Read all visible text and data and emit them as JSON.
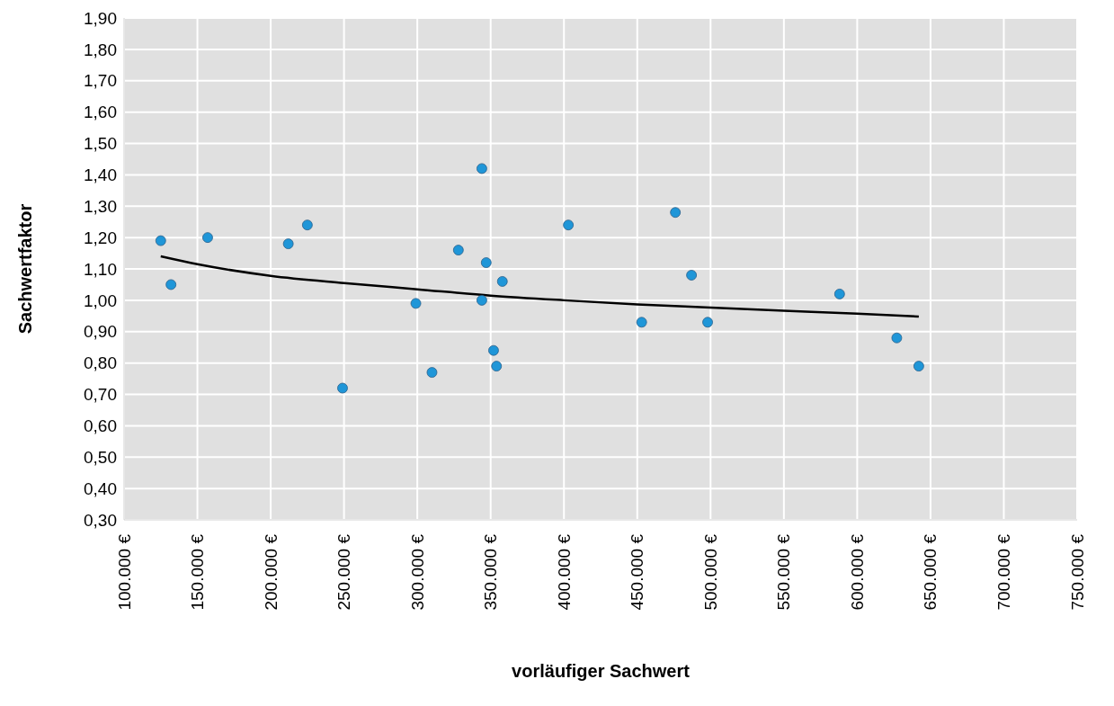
{
  "chart_data": {
    "type": "scatter",
    "xlabel": "vorläufiger Sachwert",
    "ylabel": "Sachwertfaktor",
    "grid": true,
    "marker": "circle",
    "xlim": [
      100000,
      750000
    ],
    "xticks": [
      {
        "value": 100000,
        "label": "100.000 €"
      },
      {
        "value": 150000,
        "label": "150.000 €"
      },
      {
        "value": 200000,
        "label": "200.000 €"
      },
      {
        "value": 250000,
        "label": "250.000 €"
      },
      {
        "value": 300000,
        "label": "300.000 €"
      },
      {
        "value": 350000,
        "label": "350.000 €"
      },
      {
        "value": 400000,
        "label": "400.000 €"
      },
      {
        "value": 450000,
        "label": "450.000 €"
      },
      {
        "value": 500000,
        "label": "500.000 €"
      },
      {
        "value": 550000,
        "label": "550.000 €"
      },
      {
        "value": 600000,
        "label": "600.000 €"
      },
      {
        "value": 650000,
        "label": "650.000 €"
      },
      {
        "value": 700000,
        "label": "700.000 €"
      },
      {
        "value": 750000,
        "label": "750.000 €"
      }
    ],
    "ylim": [
      0.3,
      1.9
    ],
    "yticks": [
      {
        "value": 0.3,
        "label": "0,30"
      },
      {
        "value": 0.4,
        "label": "0,40"
      },
      {
        "value": 0.5,
        "label": "0,50"
      },
      {
        "value": 0.6,
        "label": "0,60"
      },
      {
        "value": 0.7,
        "label": "0,70"
      },
      {
        "value": 0.8,
        "label": "0,80"
      },
      {
        "value": 0.9,
        "label": "0,90"
      },
      {
        "value": 1.0,
        "label": "1,00"
      },
      {
        "value": 1.1,
        "label": "1,10"
      },
      {
        "value": 1.2,
        "label": "1,20"
      },
      {
        "value": 1.3,
        "label": "1,30"
      },
      {
        "value": 1.4,
        "label": "1,40"
      },
      {
        "value": 1.5,
        "label": "1,50"
      },
      {
        "value": 1.6,
        "label": "1,60"
      },
      {
        "value": 1.7,
        "label": "1,70"
      },
      {
        "value": 1.8,
        "label": "1,80"
      },
      {
        "value": 1.9,
        "label": "1,90"
      }
    ],
    "series": [
      {
        "type": "scatter",
        "color": "#1f96d8",
        "x": [
          125000,
          132000,
          157000,
          212000,
          225000,
          249000,
          299000,
          310000,
          328000,
          344000,
          347000,
          344000,
          358000,
          352000,
          354000,
          403000,
          453000,
          476000,
          487000,
          498000,
          588000,
          627000,
          642000
        ],
        "values": [
          1.19,
          1.05,
          1.2,
          1.18,
          1.24,
          0.72,
          0.99,
          0.77,
          1.16,
          1.42,
          1.12,
          1.0,
          1.06,
          0.84,
          0.79,
          1.24,
          0.93,
          1.28,
          1.08,
          0.93,
          1.02,
          0.88,
          0.79
        ]
      },
      {
        "type": "line",
        "color": "#000000",
        "marker": "none",
        "x": [
          125000,
          150000,
          200000,
          250000,
          300000,
          350000,
          400000,
          450000,
          500000,
          550000,
          600000,
          642000
        ],
        "values": [
          1.14,
          1.115,
          1.078,
          1.055,
          1.035,
          1.015,
          1.0,
          0.987,
          0.977,
          0.967,
          0.957,
          0.948
        ]
      }
    ]
  }
}
